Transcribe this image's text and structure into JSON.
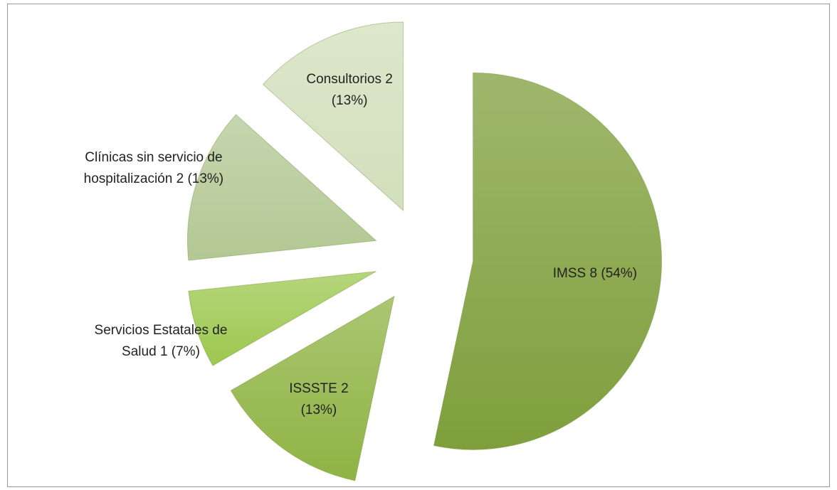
{
  "chart_data": {
    "type": "pie",
    "categories": [
      "IMSS",
      "ISSSTE",
      "Servicios Estatales de Salud",
      "Clínicas sin servicio de hospitalización",
      "Consultorios"
    ],
    "values": [
      8,
      2,
      1,
      2,
      2
    ],
    "value_labels": [
      "8 (54%)",
      "2 (13%)",
      "1 (7%)",
      "2 (13%)",
      "2 (13%)"
    ],
    "colors": [
      "#7f9f3c",
      "#8fb343",
      "#9dc850",
      "#b3c894",
      "#d2dfbb"
    ]
  }
}
